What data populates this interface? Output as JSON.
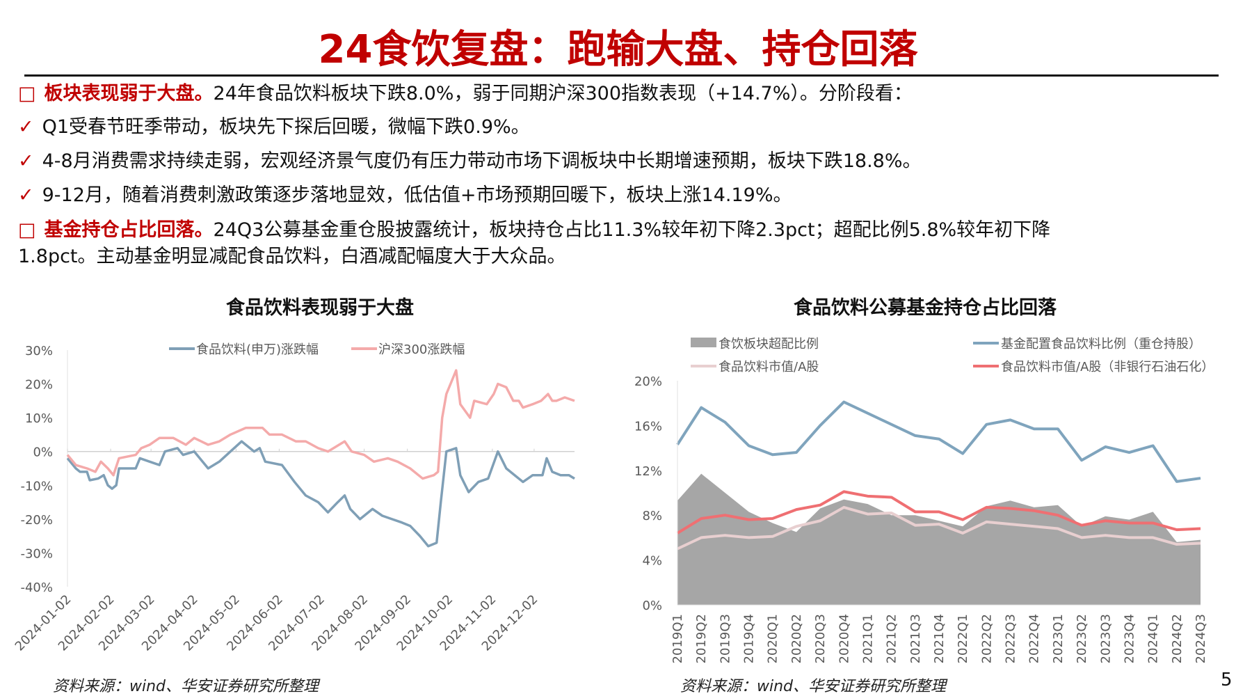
{
  "title": "24食饮复盘：跑输大盘、持仓回落",
  "bullets": [
    {
      "marker": "□",
      "head": "板块表现弱于大盘。",
      "text": "24年食品饮料板块下跌8.0%，弱于同期沪深300指数表现（+14.7%）。分阶段看："
    },
    {
      "marker": "✓",
      "head": "",
      "text": "Q1受春节旺季带动，板块先下探后回暖，微幅下跌0.9%。"
    },
    {
      "marker": "✓",
      "head": "",
      "text": "4-8月消费需求持续走弱，宏观经济景气度仍有压力带动市场下调板块中长期增速预期，板块下跌18.8%。"
    },
    {
      "marker": "✓",
      "head": "",
      "text": "9-12月，随着消费刺激政策逐步落地显效，低估值+市场预期回暖下，板块上涨14.19%。"
    },
    {
      "marker": "□",
      "head": "基金持仓占比回落。",
      "text": "24Q3公募基金重仓股披露统计，板块持仓占比11.3%较年初下降2.3pct；超配比例5.8%较年初下降"
    },
    {
      "marker": "",
      "head": "",
      "text": "1.8pct。主动基金明显减配食品饮料，白酒减配幅度大于大众品。"
    }
  ],
  "source_left": "资料来源：wind、华安证券研究所整理",
  "source_right": "资料来源：wind、华安证券研究所整理",
  "page_number": "5",
  "chart_data": [
    {
      "type": "line",
      "title": "食品饮料表现弱于大盘",
      "ylim": [
        -40,
        30
      ],
      "yticks": [
        "30%",
        "20%",
        "10%",
        "0%",
        "-10%",
        "-20%",
        "-30%",
        "-40%"
      ],
      "xticks": [
        "2024-01-02",
        "2024-02-02",
        "2024-03-02",
        "2024-04-02",
        "2024-05-02",
        "2024-06-02",
        "2024-07-02",
        "2024-08-02",
        "2024-09-02",
        "2024-10-02",
        "2024-11-02",
        "2024-12-02"
      ],
      "x_unit": "days since 2024-01-02",
      "xlim": [
        0,
        364
      ],
      "series": [
        {
          "name": "食品饮料(申万)涨跌幅",
          "color": "#7f9fb6",
          "x": [
            0,
            6,
            9,
            14,
            16,
            22,
            26,
            29,
            32,
            35,
            37,
            49,
            52,
            59,
            66,
            70,
            79,
            83,
            91,
            101,
            109,
            117,
            125,
            134,
            138,
            142,
            154,
            163,
            171,
            180,
            187,
            194,
            199,
            203,
            210,
            219,
            226,
            233,
            240,
            246,
            253,
            259,
            265,
            268,
            272,
            279,
            282,
            288,
            295,
            302,
            309,
            315,
            321,
            327,
            334,
            341,
            344,
            348,
            354,
            360,
            364
          ],
          "values": [
            -2,
            -5,
            -6,
            -6,
            -8.5,
            -8,
            -7,
            -10,
            -11,
            -10,
            -5,
            -5,
            -2,
            -3,
            -4,
            0,
            1,
            -1,
            0,
            -5,
            -3,
            0,
            3,
            0,
            1,
            -3,
            -4,
            -9,
            -13,
            -15,
            -18,
            -15,
            -13,
            -17,
            -20,
            -17,
            -19,
            -20,
            -21,
            -22,
            -25,
            -28,
            -27,
            -15,
            0,
            1,
            -7,
            -12,
            -9,
            -8,
            0,
            -5,
            -7,
            -9,
            -7,
            -7,
            -2,
            -6,
            -7,
            -7,
            -8
          ]
        },
        {
          "name": "沪深300涨跌幅",
          "color": "#f4aaaa",
          "x": [
            0,
            6,
            14,
            20,
            24,
            29,
            33,
            37,
            49,
            53,
            59,
            66,
            76,
            85,
            91,
            101,
            109,
            117,
            128,
            140,
            145,
            154,
            164,
            171,
            180,
            187,
            199,
            204,
            213,
            220,
            230,
            237,
            246,
            255,
            263,
            266,
            269,
            272,
            279,
            282,
            289,
            292,
            301,
            306,
            309,
            315,
            320,
            324,
            327,
            334,
            340,
            345,
            348,
            351,
            357,
            364
          ],
          "values": [
            -1,
            -4,
            -5,
            -6,
            -3,
            -5,
            -7,
            -2,
            -1,
            1,
            2,
            4,
            4,
            2,
            4,
            2,
            3,
            5,
            7,
            7,
            5,
            5,
            3,
            3,
            1,
            0,
            3,
            0,
            -1,
            -3,
            -2,
            -3,
            -5,
            -8,
            -7,
            -6,
            10,
            17,
            24,
            14,
            10,
            15,
            14,
            17,
            20,
            19,
            15,
            15,
            13,
            14,
            15,
            17,
            15,
            15,
            16,
            15
          ]
        }
      ]
    },
    {
      "type": "line",
      "title": "食品饮料公募基金持仓占比回落",
      "ylim": [
        0,
        20
      ],
      "yticks": [
        "20%",
        "16%",
        "12%",
        "8%",
        "4%",
        "0%"
      ],
      "categories": [
        "2019Q1",
        "2019Q2",
        "2019Q3",
        "2019Q4",
        "2020Q1",
        "2020Q2",
        "2020Q3",
        "2020Q4",
        "2021Q1",
        "2021Q2",
        "2021Q3",
        "2021Q4",
        "2022Q1",
        "2022Q2",
        "2022Q3",
        "2022Q4",
        "2023Q1",
        "2023Q2",
        "2023Q3",
        "2023Q4",
        "2024Q1",
        "2024Q2",
        "2024Q3"
      ],
      "series": [
        {
          "name": "食饮板块超配比例",
          "kind": "area",
          "color": "#a6a6a6",
          "values": [
            9.3,
            11.7,
            10.0,
            8.3,
            7.3,
            6.5,
            8.6,
            9.4,
            9.0,
            8.0,
            8.0,
            7.5,
            7.0,
            8.8,
            9.3,
            8.7,
            8.9,
            7.0,
            7.9,
            7.6,
            8.3,
            5.6,
            5.8
          ]
        },
        {
          "name": "基金配置食品饮料比例（重仓持股）",
          "kind": "line",
          "color": "#7fa4bd",
          "values": [
            14.3,
            17.6,
            16.3,
            14.2,
            13.4,
            13.6,
            16.0,
            18.1,
            17.1,
            16.1,
            15.1,
            14.8,
            13.5,
            16.1,
            16.5,
            15.7,
            15.7,
            12.9,
            14.1,
            13.6,
            14.2,
            11.0,
            11.3
          ]
        },
        {
          "name": "食品饮料市值/A股",
          "kind": "line",
          "color": "#e8cfd0",
          "values": [
            5.0,
            6.0,
            6.2,
            6.0,
            6.1,
            7.0,
            7.5,
            8.7,
            8.1,
            8.2,
            7.1,
            7.2,
            6.4,
            7.4,
            7.2,
            7.0,
            6.8,
            6.0,
            6.2,
            6.0,
            6.0,
            5.4,
            5.5
          ]
        },
        {
          "name": "食品饮料市值/A股（非银行石油石化）",
          "kind": "line",
          "color": "#ef6f72",
          "values": [
            6.4,
            7.7,
            8.0,
            7.6,
            7.7,
            8.5,
            8.9,
            10.1,
            9.7,
            9.6,
            8.3,
            8.3,
            7.6,
            8.7,
            8.6,
            8.4,
            8.0,
            7.1,
            7.5,
            7.3,
            7.3,
            6.7,
            6.8
          ]
        }
      ]
    }
  ]
}
